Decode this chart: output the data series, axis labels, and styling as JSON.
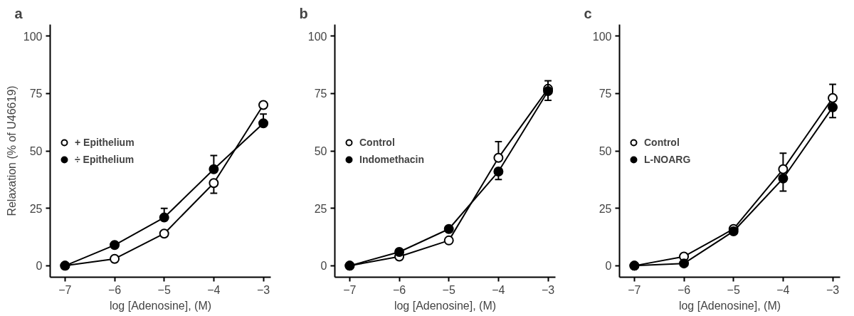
{
  "chart_data": [
    {
      "type": "line",
      "title": "a",
      "xlabel": "log [Adenosine], (M)",
      "ylabel": "Relaxation (% of U46619)",
      "x": [
        -7,
        -6,
        -5,
        -4,
        -3
      ],
      "xlim": [
        -7.3,
        -2.85
      ],
      "xticks": [
        -7,
        -6,
        -5,
        -4,
        -3
      ],
      "ylim": [
        -5,
        105
      ],
      "yticks": [
        0,
        25,
        50,
        75,
        100
      ],
      "grid": false,
      "legend": "left",
      "marker": "circle",
      "series": [
        {
          "name": "+ Epithelium",
          "color": "#ffffff",
          "values": [
            0,
            3,
            14,
            36,
            70
          ],
          "errors": [
            null,
            null,
            null,
            [
              31.6,
              36
            ],
            null
          ]
        },
        {
          "name": "÷ Epithelium",
          "color": "#000000",
          "values": [
            0,
            9,
            21,
            42,
            62
          ],
          "errors": [
            null,
            null,
            [
              21,
              25
            ],
            [
              42,
              48
            ],
            [
              62,
              66
            ]
          ]
        }
      ]
    },
    {
      "type": "line",
      "title": "b",
      "xlabel": "log [Adenosine], (M)",
      "x": [
        -7,
        -6,
        -5,
        -4,
        -3
      ],
      "xlim": [
        -7.3,
        -2.85
      ],
      "xticks": [
        -7,
        -6,
        -5,
        -4,
        -3
      ],
      "ylim": [
        -5,
        105
      ],
      "yticks": [
        0,
        25,
        50,
        75,
        100
      ],
      "grid": false,
      "legend": "left",
      "marker": "circle",
      "series": [
        {
          "name": "Control",
          "color": "#ffffff",
          "values": [
            0,
            4,
            11,
            47,
            77
          ],
          "errors": [
            null,
            null,
            null,
            [
              47,
              54
            ],
            null
          ]
        },
        {
          "name": "Indomethacin",
          "color": "#000000",
          "values": [
            0,
            6,
            16,
            41,
            76
          ],
          "errors": [
            null,
            null,
            null,
            [
              37.5,
              41
            ],
            [
              72,
              80.5
            ]
          ]
        }
      ]
    },
    {
      "type": "line",
      "title": "c",
      "xlabel": "log [Adenosine], (M)",
      "x": [
        -7,
        -6,
        -5,
        -4,
        -3
      ],
      "xlim": [
        -7.3,
        -2.85
      ],
      "xticks": [
        -7,
        -6,
        -5,
        -4,
        -3
      ],
      "ylim": [
        -5,
        105
      ],
      "yticks": [
        0,
        25,
        50,
        75,
        100
      ],
      "grid": false,
      "legend": "left",
      "marker": "circle",
      "series": [
        {
          "name": "Control",
          "color": "#ffffff",
          "values": [
            0,
            4,
            16,
            42,
            73
          ],
          "errors": [
            null,
            null,
            null,
            [
              42,
              49
            ],
            [
              73,
              79
            ]
          ]
        },
        {
          "name": "L-NOARG",
          "color": "#000000",
          "values": [
            0,
            1,
            15,
            38,
            69
          ],
          "errors": [
            null,
            null,
            null,
            [
              32.5,
              38
            ],
            [
              64.5,
              69
            ]
          ]
        }
      ]
    }
  ]
}
